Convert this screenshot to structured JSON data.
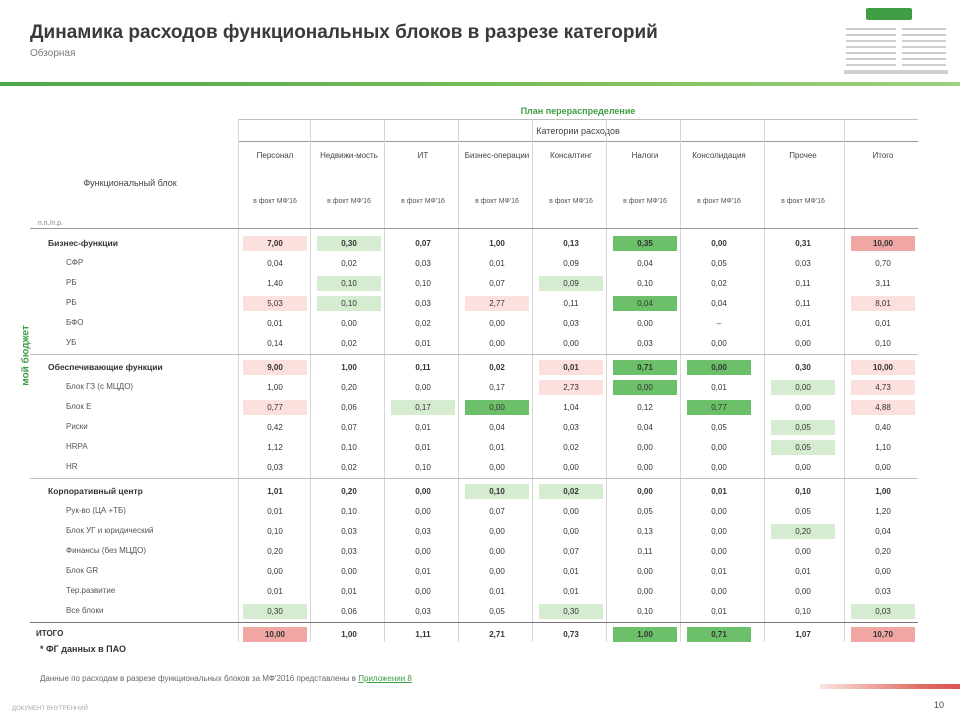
{
  "header": {
    "title": "Динамика расходов функциональных блоков в разрезе категорий",
    "subtitle": "Обзорная"
  },
  "colors": {
    "accent": "#3f9d44",
    "pos_strong": "#6cc06a",
    "pos_light": "#d5ecd0",
    "neg_strong": "#f0a7a3",
    "neg_light": "#fbe0de"
  },
  "table": {
    "side_label": "мой бюджет",
    "top_label": "План перераспределение",
    "category_label": "Категории расходов",
    "block_label": "Функциональный блок",
    "unit_label": "п.п./п.р.",
    "sub_header": "в фокт МФ'16",
    "columns": [
      "Персонал",
      "Недвижи-мость",
      "ИТ",
      "Бизнес-операции",
      "Консалтинг",
      "Налоги",
      "Консолидация",
      "Прочее",
      "Итого"
    ],
    "rows": [
      {
        "label": "Бизнес-функции",
        "type": "group",
        "v": [
          "7,00",
          "0,30",
          "0,07",
          "1,00",
          "0,13",
          "0,35",
          "0,00",
          "0,31",
          "10,00"
        ],
        "c": [
          "nl",
          "pl",
          "",
          "",
          "",
          "ps",
          "",
          "",
          "ns"
        ]
      },
      {
        "label": "СФР",
        "type": "sub",
        "v": [
          "0,04",
          "0,02",
          "0,03",
          "0,01",
          "0,09",
          "0,04",
          "0,05",
          "0,03",
          "0,70"
        ],
        "c": [
          "",
          "",
          "",
          "",
          "",
          "",
          "",
          "",
          ""
        ]
      },
      {
        "label": "РБ",
        "type": "sub",
        "v": [
          "1,40",
          "0,10",
          "0,10",
          "0,07",
          "0,09",
          "0,10",
          "0,02",
          "0,11",
          "3,11"
        ],
        "c": [
          "",
          "pl",
          "",
          "",
          "pl",
          "",
          "",
          "",
          ""
        ]
      },
      {
        "label": "РБ",
        "type": "sub",
        "v": [
          "5,03",
          "0,10",
          "0,03",
          "2,77",
          "0,11",
          "0,04",
          "0,04",
          "0,11",
          "8,01"
        ],
        "c": [
          "nl",
          "pl",
          "",
          "nl",
          "",
          "ps",
          "",
          "",
          "nl"
        ]
      },
      {
        "label": "БФО",
        "type": "sub",
        "v": [
          "0,01",
          "0,00",
          "0,02",
          "0,00",
          "0,03",
          "0,00",
          "–",
          "0,01",
          "0,01"
        ],
        "c": [
          "",
          "",
          "",
          "",
          "",
          "",
          "",
          "",
          ""
        ]
      },
      {
        "label": "УБ",
        "type": "sub",
        "v": [
          "0,14",
          "0,02",
          "0,01",
          "0,00",
          "0,00",
          "0,03",
          "0,00",
          "0,00",
          "0,10"
        ],
        "c": [
          "",
          "",
          "",
          "",
          "",
          "",
          "",
          "",
          ""
        ]
      },
      {
        "label": "Обеспечивающие функции",
        "type": "group",
        "v": [
          "9,00",
          "1,00",
          "0,11",
          "0,02",
          "0,01",
          "0,71",
          "0,00",
          "0,30",
          "10,00"
        ],
        "c": [
          "nl",
          "",
          "",
          "",
          "nl",
          "ps",
          "ps",
          "",
          "nl"
        ]
      },
      {
        "label": "Блок ГЗ (с МЦДО)",
        "type": "sub",
        "v": [
          "1,00",
          "0,20",
          "0,00",
          "0,17",
          "2,73",
          "0,00",
          "0,01",
          "0,00",
          "4,73"
        ],
        "c": [
          "",
          "",
          "",
          "",
          "nl",
          "ps",
          "",
          "pl",
          "nl"
        ]
      },
      {
        "label": "Блок Е",
        "type": "sub",
        "v": [
          "0,77",
          "0,06",
          "0,17",
          "0,00",
          "1,04",
          "0,12",
          "0,77",
          "0,00",
          "4,88"
        ],
        "c": [
          "nl",
          "",
          "pl",
          "ps",
          "",
          "",
          "ps",
          "",
          "nl"
        ]
      },
      {
        "label": "Риски",
        "type": "sub",
        "v": [
          "0,42",
          "0,07",
          "0,01",
          "0,04",
          "0,03",
          "0,04",
          "0,05",
          "0,05",
          "0,40"
        ],
        "c": [
          "",
          "",
          "",
          "",
          "",
          "",
          "",
          "pl",
          ""
        ]
      },
      {
        "label": "HRPA",
        "type": "sub",
        "v": [
          "1,12",
          "0,10",
          "0,01",
          "0,01",
          "0,02",
          "0,00",
          "0,00",
          "0,05",
          "1,10"
        ],
        "c": [
          "",
          "",
          "",
          "",
          "",
          "",
          "",
          "pl",
          ""
        ]
      },
      {
        "label": "HR",
        "type": "sub",
        "v": [
          "0,03",
          "0,02",
          "0,10",
          "0,00",
          "0,00",
          "0,00",
          "0,00",
          "0,00",
          "0,00"
        ],
        "c": [
          "",
          "",
          "",
          "",
          "",
          "",
          "",
          "",
          ""
        ]
      },
      {
        "label": "Корпоративный центр",
        "type": "group",
        "v": [
          "1,01",
          "0,20",
          "0,00",
          "0,10",
          "0,02",
          "0,00",
          "0,01",
          "0,10",
          "1,00"
        ],
        "c": [
          "",
          "",
          "",
          "pl",
          "pl",
          "",
          "",
          "",
          ""
        ]
      },
      {
        "label": "Рук-во (ЦА +ТБ)",
        "type": "sub",
        "v": [
          "0,01",
          "0,10",
          "0,00",
          "0,07",
          "0,00",
          "0,05",
          "0,00",
          "0,05",
          "1,20"
        ],
        "c": [
          "",
          "",
          "",
          "",
          "",
          "",
          "",
          "",
          ""
        ]
      },
      {
        "label": "Блок УГ и юридический",
        "type": "sub",
        "v": [
          "0,10",
          "0,03",
          "0,03",
          "0,00",
          "0,00",
          "0,13",
          "0,00",
          "0,20",
          "0,04"
        ],
        "c": [
          "",
          "",
          "",
          "",
          "",
          "",
          "",
          "pl",
          ""
        ]
      },
      {
        "label": "Финансы (без МЦДО)",
        "type": "sub",
        "v": [
          "0,20",
          "0,03",
          "0,00",
          "0,00",
          "0,07",
          "0,11",
          "0,00",
          "0,00",
          "0,20"
        ],
        "c": [
          "",
          "",
          "",
          "",
          "",
          "",
          "",
          "",
          ""
        ]
      },
      {
        "label": "Блок GR",
        "type": "sub",
        "v": [
          "0,00",
          "0,00",
          "0,01",
          "0,00",
          "0,01",
          "0,00",
          "0,01",
          "0,01",
          "0,00"
        ],
        "c": [
          "",
          "",
          "",
          "",
          "",
          "",
          "",
          "",
          ""
        ]
      },
      {
        "label": "Тер.развитие",
        "type": "sub",
        "v": [
          "0,01",
          "0,01",
          "0,00",
          "0,01",
          "0,01",
          "0,00",
          "0,00",
          "0,00",
          "0,03"
        ],
        "c": [
          "",
          "",
          "",
          "",
          "",
          "",
          "",
          "",
          ""
        ]
      },
      {
        "label": "Все блоки",
        "type": "sub",
        "v": [
          "0,30",
          "0,06",
          "0,03",
          "0,05",
          "0,30",
          "0,10",
          "0,01",
          "0,10",
          "0,03"
        ],
        "c": [
          "pl",
          "",
          "",
          "",
          "pl",
          "",
          "",
          "",
          "pl"
        ]
      },
      {
        "label": "ИТОГО",
        "type": "total",
        "v": [
          "10,00",
          "1,00",
          "1,11",
          "2,71",
          "0,73",
          "1,00",
          "0,71",
          "1,07",
          "10,70"
        ],
        "c": [
          "ns",
          "",
          "",
          "",
          "",
          "ps",
          "ps",
          "",
          "ns"
        ]
      }
    ],
    "footnote": "* ФГ данных в ПАО"
  },
  "note": {
    "text": "Данные по расходам в разрезе функциональных блоков за МФ'2016 представлены в ",
    "link": "Приложении 8"
  },
  "footer": {
    "left": "ДОКУМЕНТ ВНУТРЕННИЙ",
    "page": "10"
  }
}
